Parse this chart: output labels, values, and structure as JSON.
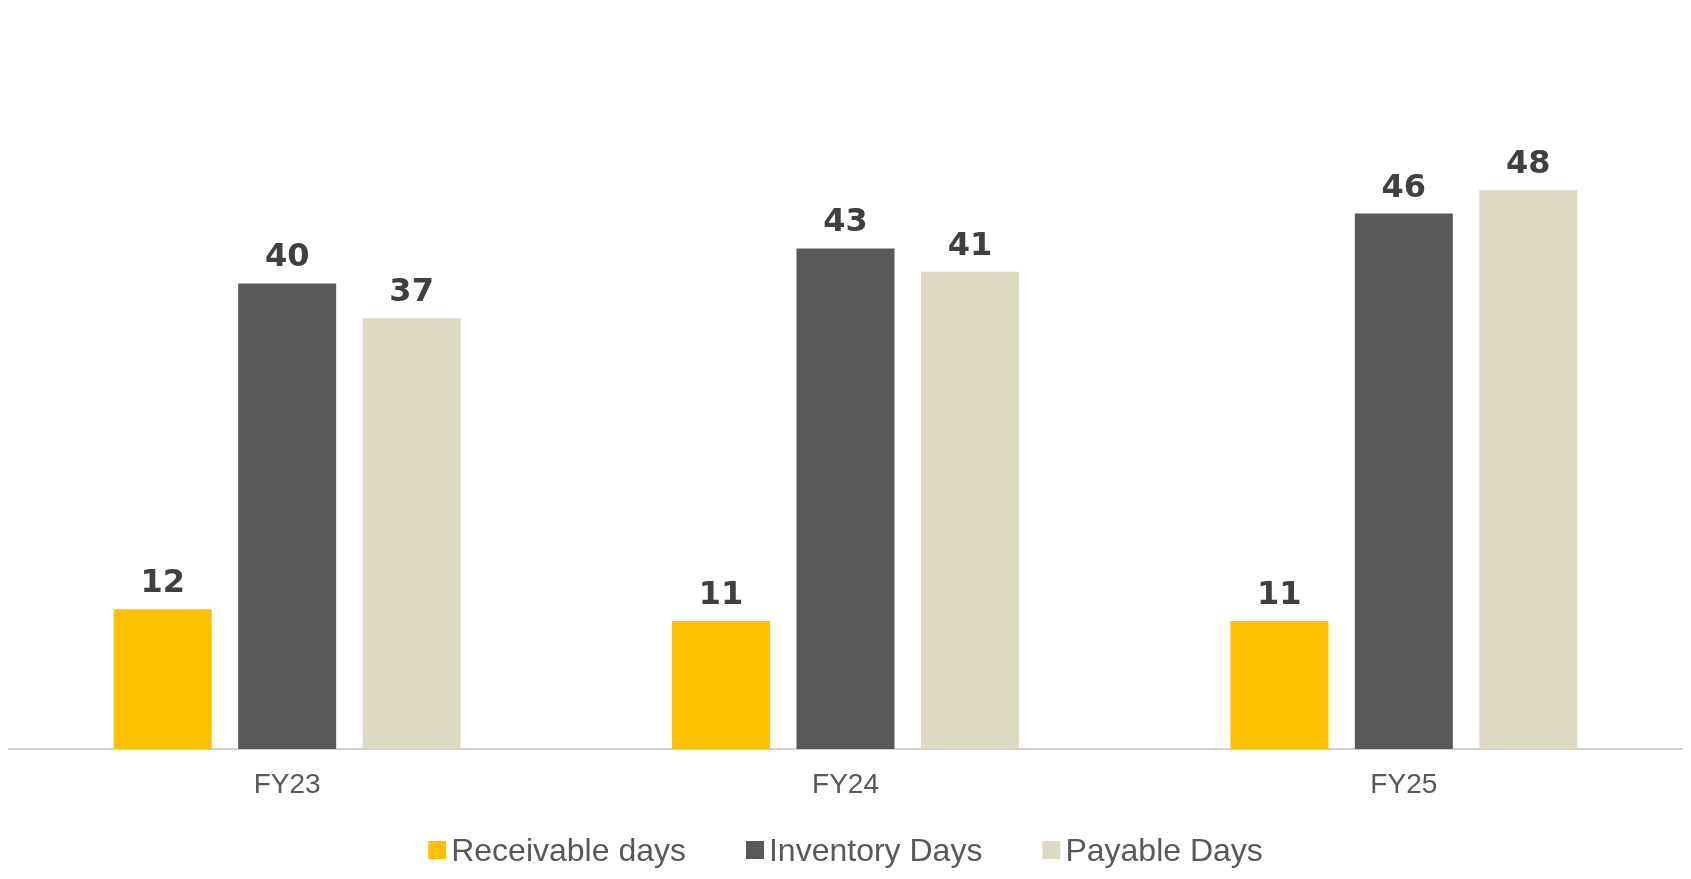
{
  "chart_data": {
    "type": "bar",
    "categories": [
      "FY23",
      "FY24",
      "FY25"
    ],
    "series": [
      {
        "name": "Receivable days",
        "color": "#ffc000",
        "values": [
          12,
          11,
          11
        ]
      },
      {
        "name": "Inventory Days",
        "color": "#595959",
        "values": [
          40,
          43,
          46
        ]
      },
      {
        "name": "Payable Days",
        "color": "#ded9c3",
        "values": [
          37,
          41,
          48
        ]
      }
    ],
    "data_labels": true,
    "legend": "bottom"
  }
}
